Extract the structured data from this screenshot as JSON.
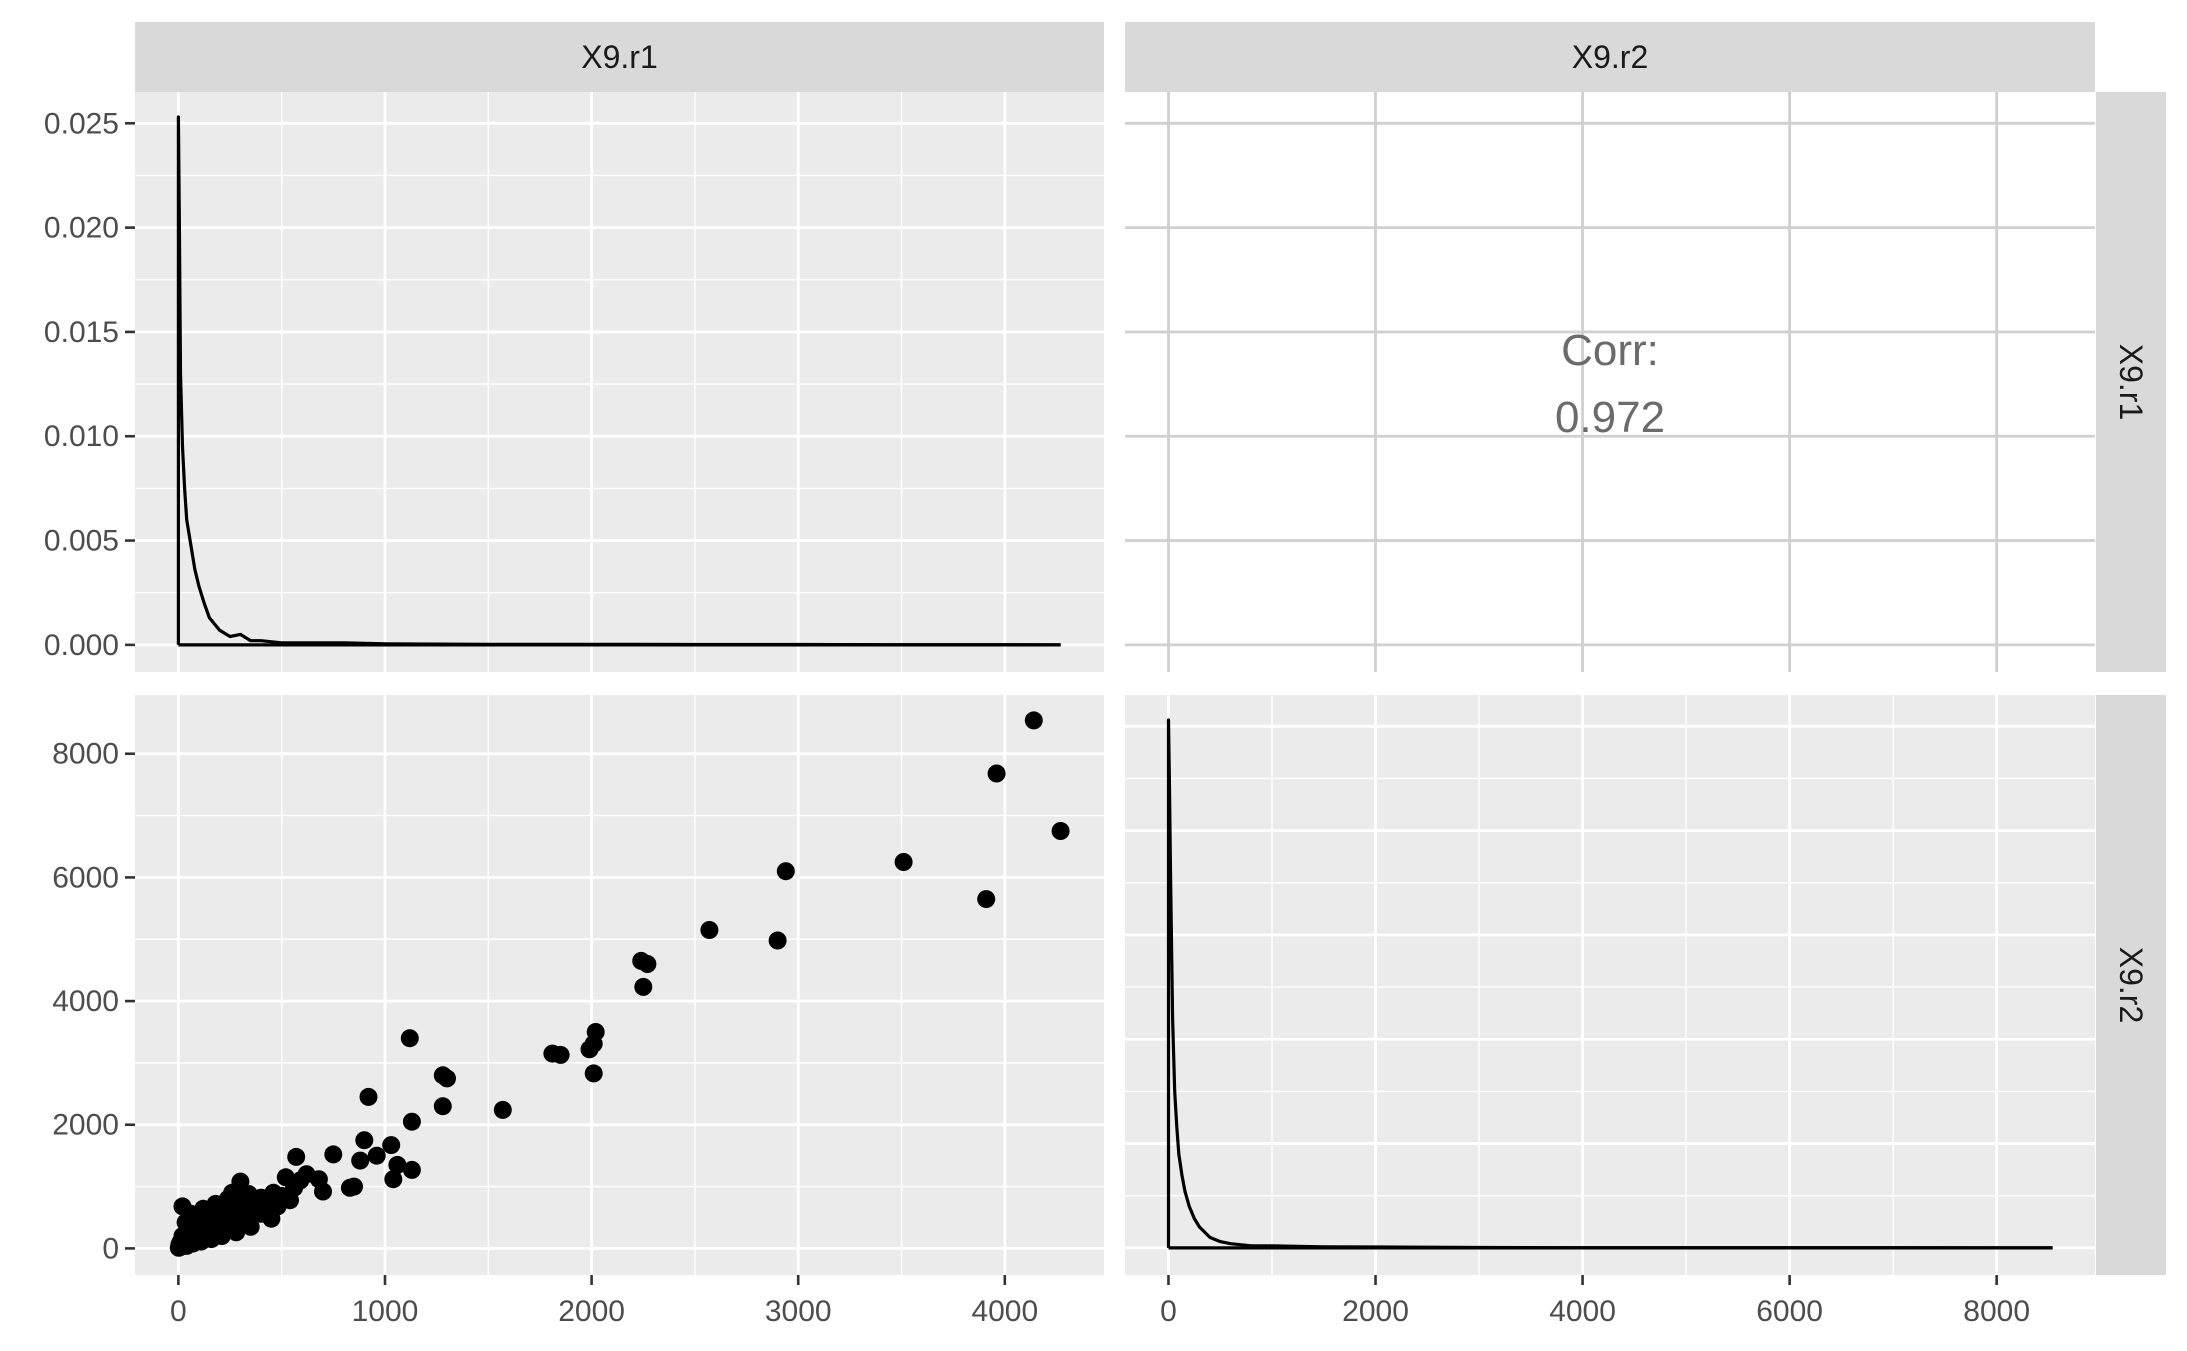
{
  "strips": {
    "col1": "X9.r1",
    "col2": "X9.r2",
    "row1": "X9.r1",
    "row2": "X9.r2"
  },
  "correlation": {
    "label": "Corr:",
    "value": "0.972"
  },
  "colors": {
    "panel_bg": "#ebebeb",
    "grid": "#ffffff",
    "strip_bg": "#d9d9d9",
    "ink": "#000000",
    "tick_text": "#4d4d4d",
    "corr_text": "#6b6b6b",
    "corr_grid": "#d0d0d0"
  },
  "chart_data": [
    {
      "type": "line",
      "panel": "X9.r1 density",
      "xlim": [
        -210,
        4480
      ],
      "ylim": [
        -0.0013,
        0.0265
      ],
      "x_ticks": [
        0,
        1000,
        2000,
        3000,
        4000
      ],
      "y_ticks": [
        0.0,
        0.005,
        0.01,
        0.015,
        0.02,
        0.025
      ],
      "y_tick_labels": [
        "0.000",
        "0.005",
        "0.010",
        "0.015",
        "0.020",
        "0.025"
      ],
      "x": [
        0,
        5,
        10,
        20,
        30,
        40,
        60,
        80,
        100,
        125,
        150,
        175,
        200,
        250,
        300,
        350,
        400,
        500,
        600,
        800,
        1000,
        1500,
        2000,
        2500,
        3000,
        3500,
        4000,
        4270
      ],
      "y": [
        0.0253,
        0.02,
        0.013,
        0.0095,
        0.0075,
        0.006,
        0.0048,
        0.0036,
        0.0028,
        0.002,
        0.0013,
        0.001,
        0.0007,
        0.0004,
        0.0005,
        0.0002,
        0.0002,
        0.0001,
        0.0001,
        0.0001,
        5e-05,
        3e-05,
        3e-05,
        2e-05,
        2e-05,
        1e-05,
        1e-05,
        0
      ]
    },
    {
      "type": "table",
      "panel": "correlation",
      "x_ticks": [
        0,
        2000,
        4000,
        6000,
        8000
      ],
      "y_ticks": [
        0.0,
        0.005,
        0.01,
        0.015,
        0.02,
        0.025
      ]
    },
    {
      "type": "scatter",
      "panel": "X9.r1 vs X9.r2",
      "xlim": [
        -210,
        4480
      ],
      "ylim": [
        -430,
        8950
      ],
      "x_ticks": [
        0,
        1000,
        2000,
        3000,
        4000
      ],
      "y_ticks": [
        0,
        2000,
        4000,
        6000,
        8000
      ],
      "points": [
        [
          4140,
          8540
        ],
        [
          3960,
          7680
        ],
        [
          4270,
          6750
        ],
        [
          3510,
          6250
        ],
        [
          3910,
          5650
        ],
        [
          2940,
          6100
        ],
        [
          2900,
          4980
        ],
        [
          2570,
          5150
        ],
        [
          2240,
          4650
        ],
        [
          2270,
          4600
        ],
        [
          2250,
          4230
        ],
        [
          2020,
          3500
        ],
        [
          2010,
          3310
        ],
        [
          1990,
          3220
        ],
        [
          2010,
          2830
        ],
        [
          1810,
          3150
        ],
        [
          1850,
          3130
        ],
        [
          1570,
          2240
        ],
        [
          1300,
          2750
        ],
        [
          1280,
          2800
        ],
        [
          1280,
          2300
        ],
        [
          1120,
          3400
        ],
        [
          920,
          2450
        ],
        [
          1130,
          2050
        ],
        [
          1130,
          1270
        ],
        [
          1060,
          1350
        ],
        [
          1040,
          1120
        ],
        [
          1030,
          1670
        ],
        [
          960,
          1500
        ],
        [
          900,
          1750
        ],
        [
          880,
          1420
        ],
        [
          850,
          1000
        ],
        [
          830,
          980
        ],
        [
          750,
          1520
        ],
        [
          700,
          920
        ],
        [
          680,
          1120
        ],
        [
          620,
          1200
        ],
        [
          590,
          1100
        ],
        [
          570,
          1480
        ],
        [
          560,
          980
        ],
        [
          540,
          780
        ],
        [
          520,
          1150
        ],
        [
          500,
          850
        ],
        [
          480,
          680
        ],
        [
          460,
          900
        ],
        [
          440,
          700
        ],
        [
          420,
          560
        ],
        [
          400,
          820
        ],
        [
          380,
          640
        ],
        [
          360,
          720
        ],
        [
          340,
          520
        ],
        [
          320,
          600
        ],
        [
          300,
          1080
        ],
        [
          300,
          700
        ],
        [
          280,
          480
        ],
        [
          260,
          620
        ],
        [
          250,
          420
        ],
        [
          240,
          800
        ],
        [
          230,
          540
        ],
        [
          220,
          360
        ],
        [
          210,
          480
        ],
        [
          200,
          650
        ],
        [
          190,
          300
        ],
        [
          180,
          420
        ],
        [
          170,
          550
        ],
        [
          160,
          260
        ],
        [
          150,
          380
        ],
        [
          140,
          480
        ],
        [
          130,
          220
        ],
        [
          120,
          320
        ],
        [
          110,
          420
        ],
        [
          100,
          180
        ],
        [
          95,
          280
        ],
        [
          90,
          360
        ],
        [
          80,
          150
        ],
        [
          70,
          240
        ],
        [
          60,
          120
        ],
        [
          55,
          300
        ],
        [
          50,
          200
        ],
        [
          45,
          90
        ],
        [
          40,
          160
        ],
        [
          35,
          420
        ],
        [
          30,
          60
        ],
        [
          25,
          130
        ],
        [
          20,
          200
        ],
        [
          15,
          40
        ],
        [
          10,
          100
        ],
        [
          8,
          20
        ],
        [
          5,
          60
        ],
        [
          2,
          10
        ],
        [
          20,
          680
        ],
        [
          60,
          560
        ],
        [
          120,
          640
        ],
        [
          180,
          720
        ],
        [
          260,
          900
        ],
        [
          340,
          880
        ],
        [
          400,
          560
        ],
        [
          450,
          480
        ],
        [
          350,
          350
        ],
        [
          280,
          260
        ],
        [
          210,
          200
        ],
        [
          160,
          150
        ],
        [
          110,
          110
        ],
        [
          70,
          80
        ],
        [
          40,
          40
        ]
      ]
    },
    {
      "type": "line",
      "panel": "X9.r2 density",
      "xlim": [
        -420,
        8950
      ],
      "ylim": [
        -0.0013,
        0.0265
      ],
      "x_ticks": [
        0,
        2000,
        4000,
        6000,
        8000
      ],
      "x": [
        0,
        10,
        20,
        40,
        60,
        80,
        100,
        130,
        160,
        200,
        250,
        300,
        400,
        500,
        600,
        800,
        1000,
        1500,
        2000,
        3000,
        4000,
        5000,
        6000,
        7000,
        8000,
        8540
      ],
      "y": [
        0.0253,
        0.022,
        0.018,
        0.011,
        0.0075,
        0.0058,
        0.0045,
        0.0035,
        0.0027,
        0.002,
        0.0014,
        0.001,
        0.0005,
        0.0003,
        0.0002,
        0.0001,
        0.0001,
        5e-05,
        4e-05,
        2e-05,
        1e-05,
        1e-05,
        1e-05,
        1e-05,
        5e-06,
        0
      ]
    }
  ]
}
